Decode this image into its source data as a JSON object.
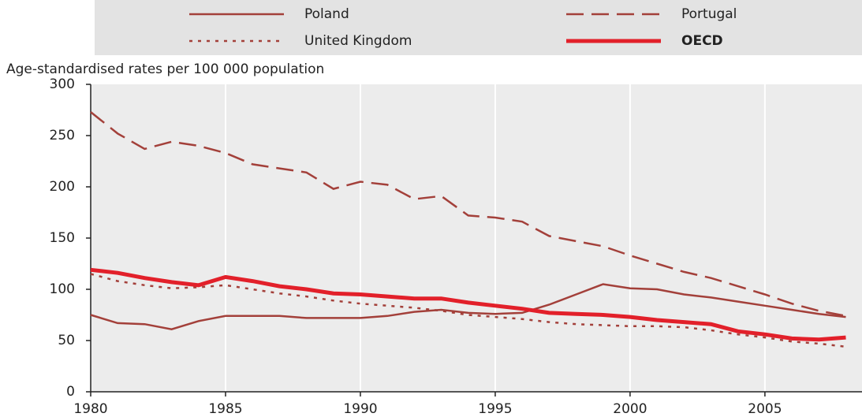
{
  "chart_data": {
    "type": "line",
    "y_label": "Age-standardised rates per 100 000 population",
    "x": [
      1980,
      1981,
      1982,
      1983,
      1984,
      1985,
      1986,
      1987,
      1988,
      1989,
      1990,
      1991,
      1992,
      1993,
      1994,
      1995,
      1996,
      1997,
      1998,
      1999,
      2000,
      2001,
      2002,
      2003,
      2004,
      2005,
      2006,
      2007,
      2008
    ],
    "series": [
      {
        "name": "Poland",
        "color": "#a3403a",
        "style": "solid",
        "width": 2.5,
        "values": [
          75,
          67,
          66,
          61,
          69,
          74,
          74,
          74,
          72,
          72,
          72,
          74,
          78,
          80,
          77,
          76,
          77,
          85,
          95,
          105,
          101,
          100,
          95,
          92,
          88,
          84,
          80,
          76,
          73
        ]
      },
      {
        "name": "Portugal",
        "color": "#a3403a",
        "style": "dashed",
        "width": 2.5,
        "values": [
          273,
          252,
          237,
          244,
          240,
          233,
          222,
          218,
          214,
          198,
          205,
          202,
          188,
          191,
          172,
          170,
          166,
          152,
          147,
          142,
          133,
          125,
          117,
          111,
          103,
          95,
          86,
          79,
          74
        ]
      },
      {
        "name": "United Kingdom",
        "color": "#a3403a",
        "style": "dotted",
        "width": 2.5,
        "values": [
          115,
          108,
          104,
          101,
          102,
          104,
          100,
          96,
          93,
          89,
          86,
          84,
          82,
          79,
          75,
          73,
          71,
          68,
          66,
          65,
          64,
          64,
          63,
          60,
          56,
          53,
          49,
          47,
          44
        ]
      },
      {
        "name": "OECD",
        "color": "#e2202a",
        "style": "solid",
        "width": 5,
        "values": [
          119,
          116,
          111,
          107,
          104,
          112,
          108,
          103,
          100,
          96,
          95,
          93,
          91,
          91,
          87,
          84,
          81,
          77,
          76,
          75,
          73,
          70,
          68,
          66,
          59,
          56,
          52,
          51,
          53
        ]
      }
    ],
    "xlim": [
      1980,
      2008.6
    ],
    "xticks": [
      1980,
      1985,
      1990,
      1995,
      2000,
      2005
    ],
    "ylim": [
      0,
      300
    ],
    "yticks": [
      0,
      50,
      100,
      150,
      200,
      250,
      300
    ],
    "grid": true
  }
}
